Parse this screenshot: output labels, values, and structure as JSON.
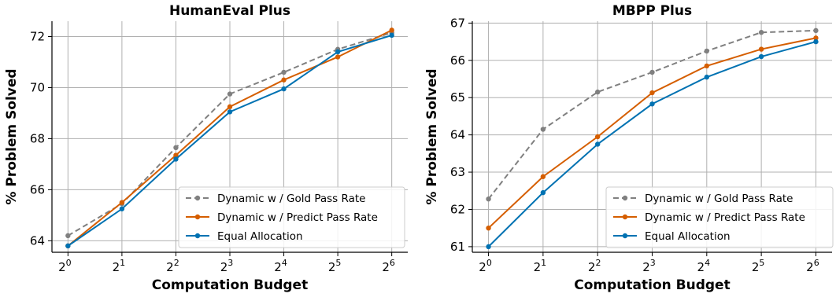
{
  "chart_data": [
    {
      "type": "line",
      "title": "HumanEval Plus",
      "xlabel": "Computation Budget",
      "ylabel": "% Problem Solved",
      "x": [
        0,
        1,
        2,
        3,
        4,
        5,
        6
      ],
      "xtick_base": "2",
      "xtick_exponents": [
        "0",
        "1",
        "2",
        "3",
        "4",
        "5",
        "6"
      ],
      "ylim": [
        63.55,
        72.6
      ],
      "yticks": [
        64,
        66,
        68,
        70,
        72
      ],
      "ytick_labels": [
        "64",
        "66",
        "68",
        "70",
        "72"
      ],
      "grid": true,
      "legend_position": "bottom-right",
      "series": [
        {
          "name": "Dynamic w / Gold Pass Rate",
          "color": "#808080",
          "dashed": true,
          "values": [
            64.2,
            65.45,
            67.65,
            69.75,
            70.6,
            71.5,
            72.15
          ]
        },
        {
          "name": "Dynamic w / Predict Pass Rate",
          "color": "#d55e00",
          "dashed": false,
          "values": [
            63.8,
            65.5,
            67.35,
            69.25,
            70.3,
            71.2,
            72.25
          ]
        },
        {
          "name": "Equal Allocation",
          "color": "#0072b2",
          "dashed": false,
          "values": [
            63.8,
            65.25,
            67.2,
            69.05,
            69.95,
            71.4,
            72.05
          ]
        }
      ]
    },
    {
      "type": "line",
      "title": "MBPP Plus",
      "xlabel": "Computation Budget",
      "ylabel": "% Problem Solved",
      "x": [
        0,
        1,
        2,
        3,
        4,
        5,
        6
      ],
      "xtick_base": "2",
      "xtick_exponents": [
        "0",
        "1",
        "2",
        "3",
        "4",
        "5",
        "6"
      ],
      "ylim": [
        60.85,
        67.05
      ],
      "yticks": [
        61,
        62,
        63,
        64,
        65,
        66,
        67
      ],
      "ytick_labels": [
        "61",
        "62",
        "63",
        "64",
        "65",
        "66",
        "67"
      ],
      "grid": true,
      "legend_position": "bottom-right",
      "series": [
        {
          "name": "Dynamic w / Gold Pass Rate",
          "color": "#808080",
          "dashed": true,
          "values": [
            62.28,
            64.15,
            65.15,
            65.68,
            66.25,
            66.75,
            66.8
          ]
        },
        {
          "name": "Dynamic w / Predict Pass Rate",
          "color": "#d55e00",
          "dashed": false,
          "values": [
            61.5,
            62.88,
            63.95,
            65.13,
            65.85,
            66.3,
            66.6
          ]
        },
        {
          "name": "Equal Allocation",
          "color": "#0072b2",
          "dashed": false,
          "values": [
            61.0,
            62.45,
            63.75,
            64.83,
            65.55,
            66.1,
            66.5
          ]
        }
      ]
    }
  ]
}
